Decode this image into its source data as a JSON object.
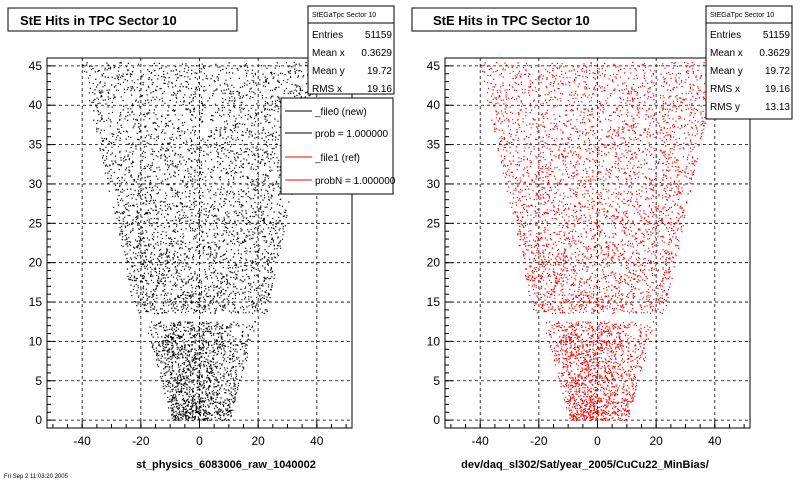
{
  "panels": [
    {
      "title": "StE Hits in TPC Sector 10",
      "stats_name": "StEGaTpc Sector 10",
      "stats": [
        {
          "label": "Entries",
          "value": "51159"
        },
        {
          "label": "Mean x",
          "value": "0.3629"
        },
        {
          "label": "Mean y",
          "value": "19.72"
        },
        {
          "label": "RMS x",
          "value": "19.16"
        }
      ],
      "legend": [
        {
          "label": "_file0 (new)",
          "color": "#000000"
        },
        {
          "label": "prob = 1.000000",
          "color": "#000000"
        },
        {
          "label": "_file1 (ref)",
          "color": "#ff0000"
        },
        {
          "label": "probN = 1.000000",
          "color": "#ff0000"
        }
      ],
      "xlabel": "st_physics_6083006_raw_1040002",
      "marker_color": "#000000"
    },
    {
      "title": "StE Hits in TPC Sector 10",
      "stats_name": "StEGaTpc Sector 10",
      "stats": [
        {
          "label": "Entries",
          "value": "51159"
        },
        {
          "label": "Mean x",
          "value": "0.3629"
        },
        {
          "label": "Mean y",
          "value": "19.72"
        },
        {
          "label": "RMS x",
          "value": "19.16"
        },
        {
          "label": "RMS y",
          "value": "13.13"
        }
      ],
      "legend": [],
      "xlabel": "dev/daq_sl302/Sat/year_2005/CuCu22_MinBias/",
      "marker_color": "#ff0000"
    }
  ],
  "footer_text": "Fri Sep 2 11:03:20 2005",
  "chart_data": [
    {
      "type": "scatter",
      "title": "StE Hits in TPC Sector 10",
      "xlabel": "st_physics_6083006_raw_1040002",
      "ylabel": "",
      "xlim": [
        -52,
        52
      ],
      "ylim": [
        -1,
        46
      ],
      "xticks": [
        -40,
        -20,
        0,
        20,
        40
      ],
      "yticks": [
        0,
        5,
        10,
        15,
        20,
        25,
        30,
        35,
        40,
        45
      ],
      "grid": true,
      "series": [
        {
          "name": "_file0 (new)",
          "color": "#000000",
          "entries": 51159,
          "mean_x": 0.3629,
          "mean_y": 19.72,
          "rms_x": 19.16
        }
      ],
      "legend_position": "top-right"
    },
    {
      "type": "scatter",
      "title": "StE Hits in TPC Sector 10",
      "xlabel": "dev/daq_sl302/Sat/year_2005/CuCu22_MinBias/",
      "ylabel": "",
      "xlim": [
        -52,
        52
      ],
      "ylim": [
        -1,
        46
      ],
      "xticks": [
        -40,
        -20,
        0,
        20,
        40
      ],
      "yticks": [
        0,
        5,
        10,
        15,
        20,
        25,
        30,
        35,
        40,
        45
      ],
      "grid": true,
      "series": [
        {
          "name": "_file1 (ref)",
          "color": "#ff0000",
          "entries": 51159,
          "mean_x": 0.3629,
          "mean_y": 19.72,
          "rms_x": 19.16,
          "rms_y": 13.13
        }
      ]
    }
  ]
}
